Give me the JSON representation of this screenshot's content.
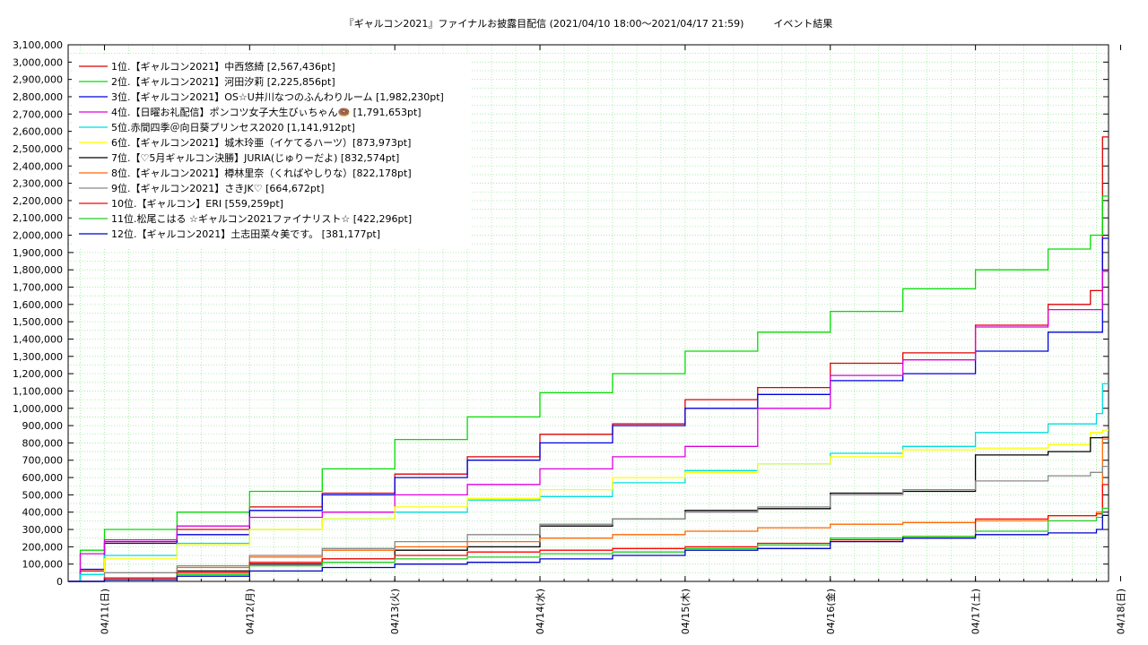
{
  "chart_data": {
    "type": "line",
    "line_style": "step",
    "title": "『ギャルコン2021』ファイナルお披露目配信 (2021/04/10 18:00〜2021/04/17 21:59)　　　イベント結果",
    "xlabel": "",
    "ylabel": "",
    "x_range": [
      "2021/04/10 18:00",
      "2021/04/17 22:00"
    ],
    "x_ticks": [
      "04/11(日)",
      "04/12(月)",
      "04/13(火)",
      "04/14(水)",
      "04/15(木)",
      "04/16(金)",
      "04/17(土)",
      "04/18(日)"
    ],
    "ylim": [
      0,
      3100000
    ],
    "y_ticks": [
      "0",
      "100,000",
      "200,000",
      "300,000",
      "400,000",
      "500,000",
      "600,000",
      "700,000",
      "800,000",
      "900,000",
      "1,000,000",
      "1,100,000",
      "1,200,000",
      "1,300,000",
      "1,400,000",
      "1,500,000",
      "1,600,000",
      "1,700,000",
      "1,800,000",
      "1,900,000",
      "2,000,000",
      "2,100,000",
      "2,200,000",
      "2,300,000",
      "2,400,000",
      "2,500,000",
      "2,600,000",
      "2,700,000",
      "2,800,000",
      "2,900,000",
      "3,000,000",
      "3,100,000"
    ],
    "grid": true,
    "legend_position": "top-left",
    "series": [
      {
        "name": "1位.【ギャルコン2021】中西悠綺 [2,567,436pt]",
        "color": "#dd0000",
        "points": [
          [
            "04/10 18:00",
            0
          ],
          [
            "04/10 20:00",
            60000
          ],
          [
            "04/11 00:00",
            230000
          ],
          [
            "04/11 12:00",
            300000
          ],
          [
            "04/12 00:00",
            430000
          ],
          [
            "04/12 12:00",
            510000
          ],
          [
            "04/13 00:00",
            620000
          ],
          [
            "04/13 12:00",
            720000
          ],
          [
            "04/14 00:00",
            850000
          ],
          [
            "04/14 12:00",
            910000
          ],
          [
            "04/15 00:00",
            1050000
          ],
          [
            "04/15 12:00",
            1120000
          ],
          [
            "04/16 00:00",
            1260000
          ],
          [
            "04/16 12:00",
            1320000
          ],
          [
            "04/17 00:00",
            1480000
          ],
          [
            "04/17 12:00",
            1600000
          ],
          [
            "04/17 19:00",
            1680000
          ],
          [
            "04/17 21:00",
            2567436
          ]
        ]
      },
      {
        "name": "2位.【ギャルコン2021】河田汐莉 [2,225,856pt]",
        "color": "#00dd00",
        "points": [
          [
            "04/10 18:00",
            0
          ],
          [
            "04/10 20:00",
            180000
          ],
          [
            "04/11 00:00",
            300000
          ],
          [
            "04/11 12:00",
            400000
          ],
          [
            "04/12 00:00",
            520000
          ],
          [
            "04/12 12:00",
            650000
          ],
          [
            "04/13 00:00",
            820000
          ],
          [
            "04/13 12:00",
            950000
          ],
          [
            "04/14 00:00",
            1090000
          ],
          [
            "04/14 12:00",
            1200000
          ],
          [
            "04/15 00:00",
            1330000
          ],
          [
            "04/15 12:00",
            1440000
          ],
          [
            "04/16 00:00",
            1560000
          ],
          [
            "04/16 12:00",
            1690000
          ],
          [
            "04/17 00:00",
            1800000
          ],
          [
            "04/17 12:00",
            1920000
          ],
          [
            "04/17 19:00",
            2000000
          ],
          [
            "04/17 21:00",
            2225856
          ]
        ]
      },
      {
        "name": "3位.【ギャルコン2021】OS☆U井川なつのふんわりルーム [1,982,230pt]",
        "color": "#0000dd",
        "points": [
          [
            "04/10 18:00",
            0
          ],
          [
            "04/10 20:00",
            70000
          ],
          [
            "04/11 00:00",
            220000
          ],
          [
            "04/11 12:00",
            270000
          ],
          [
            "04/12 00:00",
            410000
          ],
          [
            "04/12 12:00",
            500000
          ],
          [
            "04/13 00:00",
            600000
          ],
          [
            "04/13 12:00",
            700000
          ],
          [
            "04/14 00:00",
            800000
          ],
          [
            "04/14 12:00",
            900000
          ],
          [
            "04/15 00:00",
            1000000
          ],
          [
            "04/15 12:00",
            1080000
          ],
          [
            "04/16 00:00",
            1160000
          ],
          [
            "04/16 12:00",
            1200000
          ],
          [
            "04/17 00:00",
            1330000
          ],
          [
            "04/17 12:00",
            1440000
          ],
          [
            "04/17 20:00",
            1440000
          ],
          [
            "04/17 21:00",
            1982230
          ]
        ]
      },
      {
        "name": "4位.【日曜お礼配信】ポンコツ女子大生びぃちゃん🍩 [1,791,653pt]",
        "color": "#dd00dd",
        "points": [
          [
            "04/10 18:00",
            0
          ],
          [
            "04/10 20:00",
            160000
          ],
          [
            "04/11 00:00",
            240000
          ],
          [
            "04/11 12:00",
            320000
          ],
          [
            "04/12 00:00",
            370000
          ],
          [
            "04/12 12:00",
            400000
          ],
          [
            "04/13 00:00",
            500000
          ],
          [
            "04/13 12:00",
            560000
          ],
          [
            "04/14 00:00",
            650000
          ],
          [
            "04/14 12:00",
            720000
          ],
          [
            "04/15 00:00",
            780000
          ],
          [
            "04/15 12:00",
            1000000
          ],
          [
            "04/16 00:00",
            1190000
          ],
          [
            "04/16 12:00",
            1280000
          ],
          [
            "04/17 00:00",
            1470000
          ],
          [
            "04/17 12:00",
            1570000
          ],
          [
            "04/17 20:00",
            1570000
          ],
          [
            "04/17 21:00",
            1791653
          ]
        ]
      },
      {
        "name": "5位.赤間四季＠向日葵プリンセス2020 [1,141,912pt]",
        "color": "#00dddd",
        "points": [
          [
            "04/10 18:00",
            0
          ],
          [
            "04/10 20:00",
            40000
          ],
          [
            "04/11 00:00",
            150000
          ],
          [
            "04/11 12:00",
            220000
          ],
          [
            "04/12 00:00",
            300000
          ],
          [
            "04/12 12:00",
            360000
          ],
          [
            "04/13 00:00",
            400000
          ],
          [
            "04/13 12:00",
            470000
          ],
          [
            "04/14 00:00",
            490000
          ],
          [
            "04/14 12:00",
            570000
          ],
          [
            "04/15 00:00",
            640000
          ],
          [
            "04/15 12:00",
            680000
          ],
          [
            "04/16 00:00",
            740000
          ],
          [
            "04/16 12:00",
            780000
          ],
          [
            "04/17 00:00",
            860000
          ],
          [
            "04/17 12:00",
            910000
          ],
          [
            "04/17 20:00",
            970000
          ],
          [
            "04/17 21:00",
            1141912
          ]
        ]
      },
      {
        "name": "6位.【ギャルコン2021】城木玲亜（イケてるハーツ）[873,973pt]",
        "color": "#ffff00",
        "points": [
          [
            "04/10 18:00",
            0
          ],
          [
            "04/11 00:00",
            130000
          ],
          [
            "04/11 12:00",
            210000
          ],
          [
            "04/12 00:00",
            300000
          ],
          [
            "04/12 12:00",
            360000
          ],
          [
            "04/13 00:00",
            430000
          ],
          [
            "04/13 12:00",
            480000
          ],
          [
            "04/14 00:00",
            530000
          ],
          [
            "04/14 12:00",
            600000
          ],
          [
            "04/15 00:00",
            630000
          ],
          [
            "04/15 12:00",
            680000
          ],
          [
            "04/16 00:00",
            720000
          ],
          [
            "04/16 12:00",
            760000
          ],
          [
            "04/17 00:00",
            770000
          ],
          [
            "04/17 12:00",
            790000
          ],
          [
            "04/17 19:00",
            860000
          ],
          [
            "04/17 21:00",
            873973
          ]
        ]
      },
      {
        "name": "7位.【♡5月ギャルコン決勝】JURIA(じゅりーだよ) [832,574pt]",
        "color": "#000000",
        "points": [
          [
            "04/10 18:00",
            0
          ],
          [
            "04/11 00:00",
            20000
          ],
          [
            "04/11 12:00",
            60000
          ],
          [
            "04/12 00:00",
            100000
          ],
          [
            "04/12 12:00",
            130000
          ],
          [
            "04/13 00:00",
            180000
          ],
          [
            "04/13 12:00",
            200000
          ],
          [
            "04/14 00:00",
            320000
          ],
          [
            "04/14 12:00",
            360000
          ],
          [
            "04/15 00:00",
            410000
          ],
          [
            "04/15 12:00",
            420000
          ],
          [
            "04/16 00:00",
            510000
          ],
          [
            "04/16 12:00",
            520000
          ],
          [
            "04/17 00:00",
            730000
          ],
          [
            "04/17 12:00",
            750000
          ],
          [
            "04/17 19:00",
            830000
          ],
          [
            "04/17 21:00",
            832574
          ]
        ]
      },
      {
        "name": "8位.【ギャルコン2021】樽林里奈（くればやしりな）[822,178pt]",
        "color": "#ff6600",
        "points": [
          [
            "04/10 18:00",
            0
          ],
          [
            "04/11 00:00",
            20000
          ],
          [
            "04/11 12:00",
            80000
          ],
          [
            "04/12 00:00",
            140000
          ],
          [
            "04/12 12:00",
            180000
          ],
          [
            "04/13 00:00",
            200000
          ],
          [
            "04/13 12:00",
            230000
          ],
          [
            "04/14 00:00",
            250000
          ],
          [
            "04/14 12:00",
            270000
          ],
          [
            "04/15 00:00",
            290000
          ],
          [
            "04/15 12:00",
            310000
          ],
          [
            "04/16 00:00",
            330000
          ],
          [
            "04/16 12:00",
            340000
          ],
          [
            "04/17 00:00",
            350000
          ],
          [
            "04/17 12:00",
            380000
          ],
          [
            "04/17 20:00",
            400000
          ],
          [
            "04/17 21:00",
            822178
          ]
        ]
      },
      {
        "name": "9位.【ギャルコン2021】さきJK♡ [664,672pt]",
        "color": "#888888",
        "points": [
          [
            "04/10 18:00",
            0
          ],
          [
            "04/11 00:00",
            50000
          ],
          [
            "04/11 12:00",
            90000
          ],
          [
            "04/12 00:00",
            150000
          ],
          [
            "04/12 12:00",
            190000
          ],
          [
            "04/13 00:00",
            230000
          ],
          [
            "04/13 12:00",
            270000
          ],
          [
            "04/14 00:00",
            330000
          ],
          [
            "04/14 12:00",
            360000
          ],
          [
            "04/15 00:00",
            400000
          ],
          [
            "04/15 12:00",
            430000
          ],
          [
            "04/16 00:00",
            500000
          ],
          [
            "04/16 12:00",
            530000
          ],
          [
            "04/17 00:00",
            580000
          ],
          [
            "04/17 12:00",
            610000
          ],
          [
            "04/17 19:00",
            630000
          ],
          [
            "04/17 21:00",
            664672
          ]
        ]
      },
      {
        "name": "10位.【ギャルコン】ERI [559,259pt]",
        "color": "#ff0000",
        "points": [
          [
            "04/10 18:00",
            0
          ],
          [
            "04/11 00:00",
            20000
          ],
          [
            "04/11 12:00",
            50000
          ],
          [
            "04/12 00:00",
            110000
          ],
          [
            "04/12 12:00",
            130000
          ],
          [
            "04/13 00:00",
            150000
          ],
          [
            "04/13 12:00",
            170000
          ],
          [
            "04/14 00:00",
            180000
          ],
          [
            "04/14 12:00",
            190000
          ],
          [
            "04/15 00:00",
            200000
          ],
          [
            "04/15 12:00",
            220000
          ],
          [
            "04/16 00:00",
            240000
          ],
          [
            "04/16 12:00",
            260000
          ],
          [
            "04/17 00:00",
            360000
          ],
          [
            "04/17 12:00",
            380000
          ],
          [
            "04/17 20:00",
            390000
          ],
          [
            "04/17 21:00",
            559259
          ]
        ]
      },
      {
        "name": "11位.松尾こはる ☆ギャルコン2021ファイナリスト☆ [422,296pt]",
        "color": "#22cc22",
        "points": [
          [
            "04/10 18:00",
            0
          ],
          [
            "04/11 00:00",
            10000
          ],
          [
            "04/11 12:00",
            40000
          ],
          [
            "04/12 00:00",
            90000
          ],
          [
            "04/12 12:00",
            110000
          ],
          [
            "04/13 00:00",
            130000
          ],
          [
            "04/13 12:00",
            140000
          ],
          [
            "04/14 00:00",
            160000
          ],
          [
            "04/14 12:00",
            170000
          ],
          [
            "04/15 00:00",
            190000
          ],
          [
            "04/15 12:00",
            210000
          ],
          [
            "04/16 00:00",
            250000
          ],
          [
            "04/16 12:00",
            260000
          ],
          [
            "04/17 00:00",
            290000
          ],
          [
            "04/17 12:00",
            350000
          ],
          [
            "04/17 20:00",
            370000
          ],
          [
            "04/17 21:00",
            422296
          ]
        ]
      },
      {
        "name": "12位.【ギャルコン2021】土志田菜々美です。 [381,177pt]",
        "color": "#0000cc",
        "points": [
          [
            "04/10 18:00",
            0
          ],
          [
            "04/11 00:00",
            10000
          ],
          [
            "04/11 12:00",
            30000
          ],
          [
            "04/12 00:00",
            60000
          ],
          [
            "04/12 12:00",
            80000
          ],
          [
            "04/13 00:00",
            100000
          ],
          [
            "04/13 12:00",
            110000
          ],
          [
            "04/14 00:00",
            130000
          ],
          [
            "04/14 12:00",
            150000
          ],
          [
            "04/15 00:00",
            180000
          ],
          [
            "04/15 12:00",
            190000
          ],
          [
            "04/16 00:00",
            230000
          ],
          [
            "04/16 12:00",
            250000
          ],
          [
            "04/17 00:00",
            270000
          ],
          [
            "04/17 12:00",
            280000
          ],
          [
            "04/17 20:00",
            300000
          ],
          [
            "04/17 21:00",
            381177
          ]
        ]
      }
    ]
  }
}
